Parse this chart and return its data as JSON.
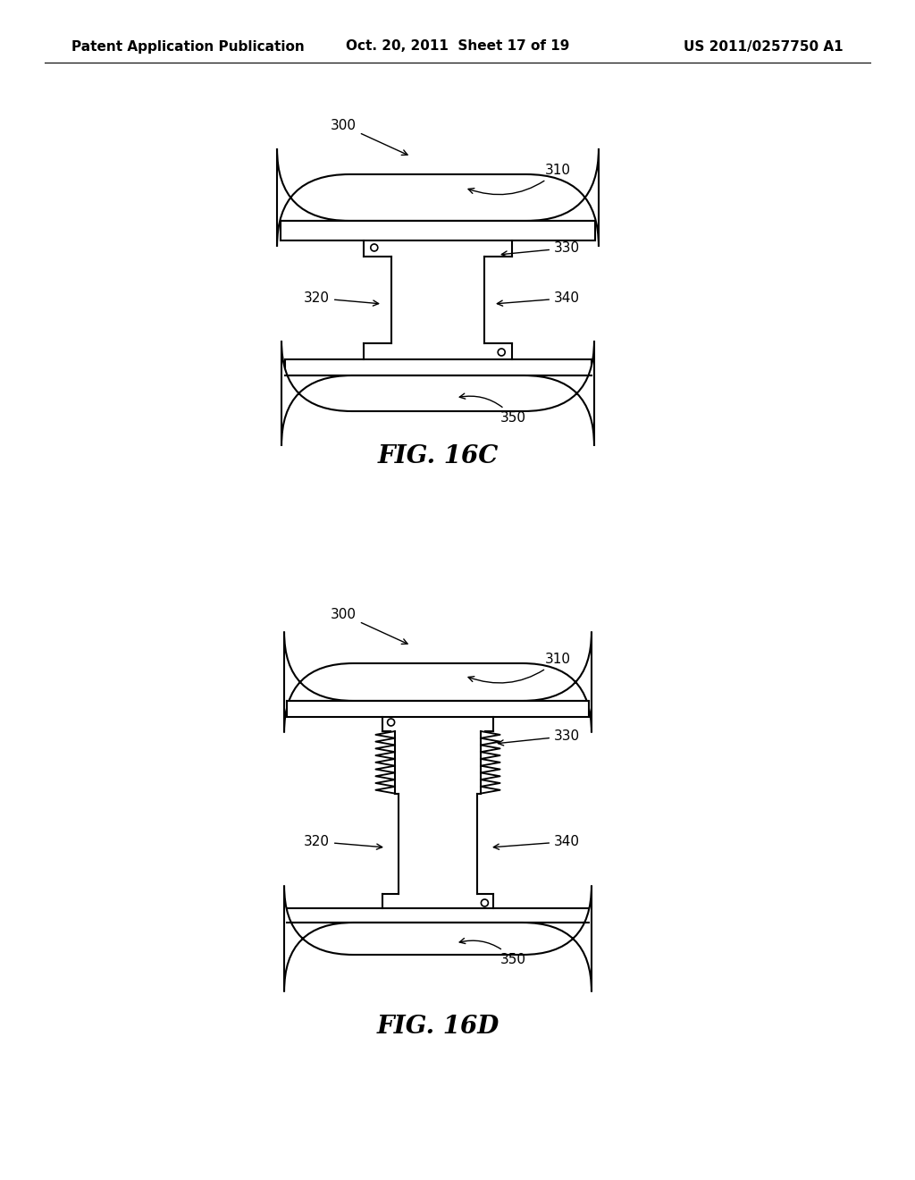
{
  "background_color": "#ffffff",
  "header_left": "Patent Application Publication",
  "header_center": "Oct. 20, 2011  Sheet 17 of 19",
  "header_right": "US 2011/0257750 A1",
  "header_fontsize": 11,
  "fig_label_16C": "FIG. 16C",
  "fig_label_16D": "FIG. 16D",
  "label_fontsize": 20,
  "annotation_fontsize": 11,
  "line_color": "#000000",
  "line_width": 1.5
}
